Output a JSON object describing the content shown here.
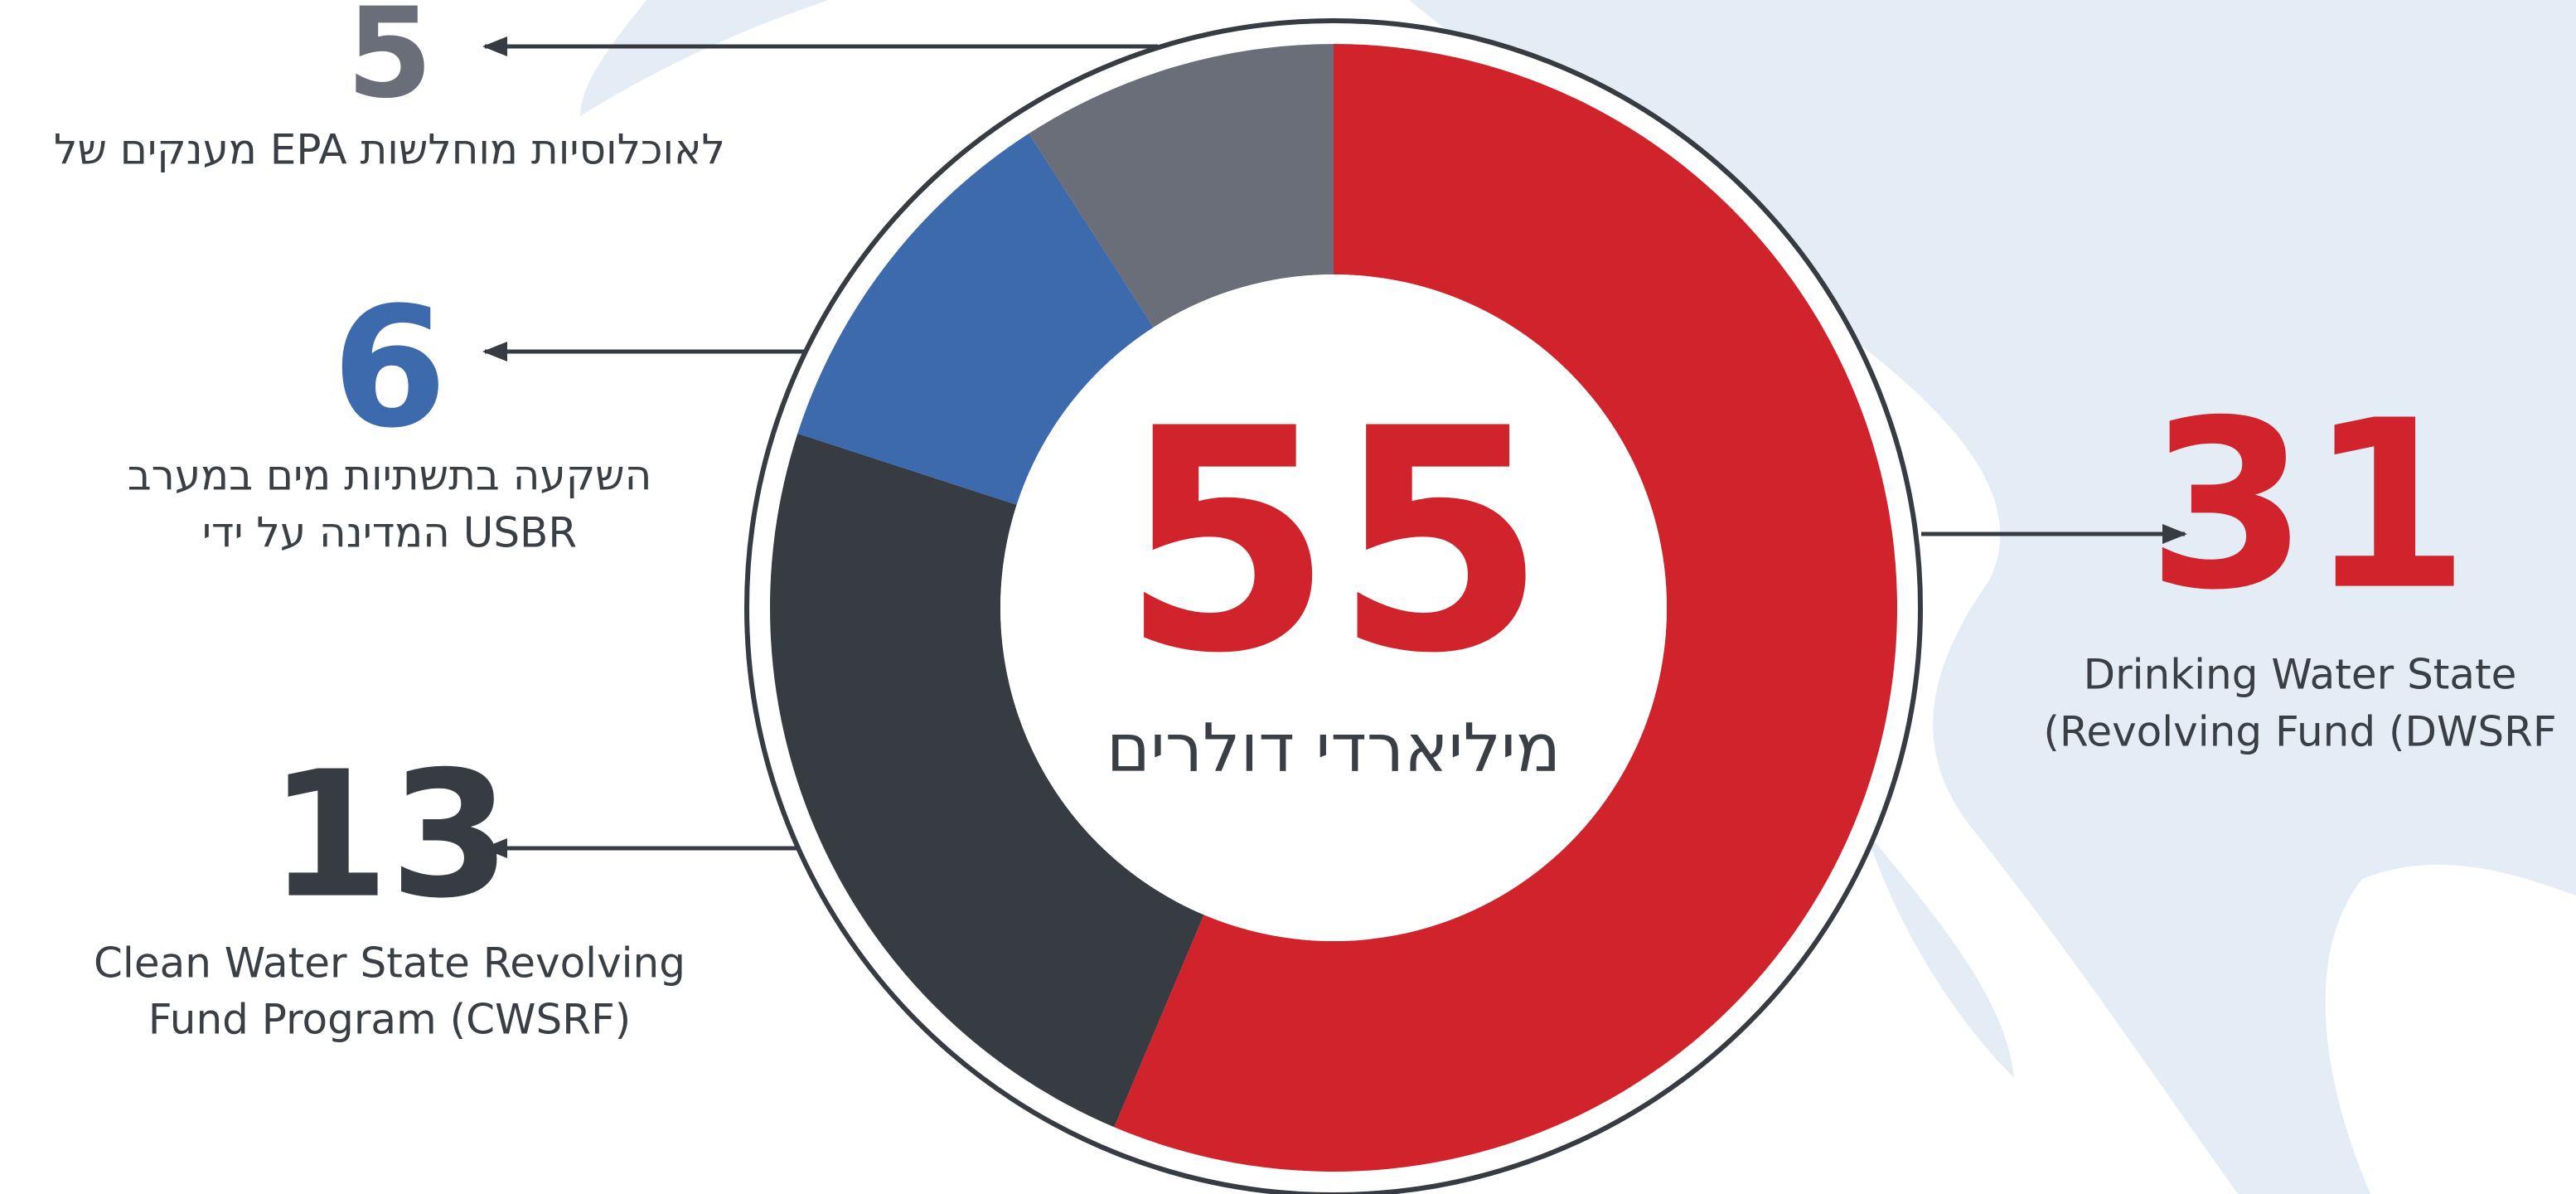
{
  "chart_data": {
    "type": "pie",
    "donut": true,
    "total": 55,
    "total_label": "מיליארדי דולרים",
    "categories": [
      [
        "Drinking Water State",
        "(Revolving Fund (DWSRF"
      ],
      [
        "Clean Water State Revolving",
        "Fund Program (CWSRF)"
      ],
      [
        "השקעה בתשתיות מים במערב",
        "המדינה על ידי USBR"
      ],
      [
        "מענקים של EPA לאוכלוסיות מוחלשות"
      ]
    ],
    "values": [
      31,
      13,
      6,
      5
    ],
    "colors": [
      "#d0232b",
      "#373c43",
      "#3d69ad",
      "#6a6e78"
    ]
  }
}
